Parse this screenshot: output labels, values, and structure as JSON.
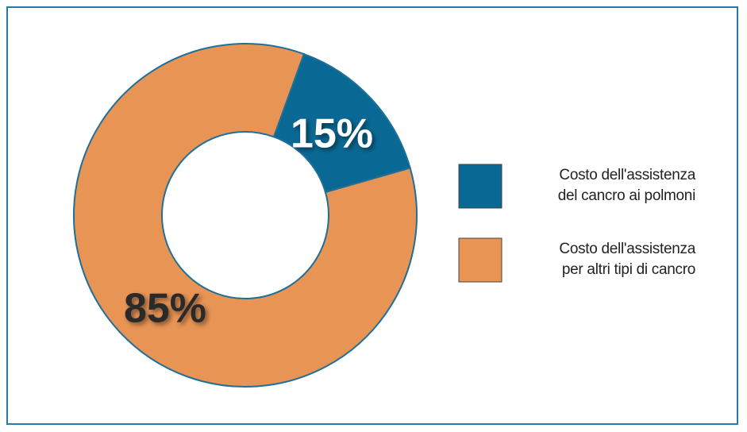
{
  "chart_data": {
    "type": "donut",
    "categories": [
      "Costo dell'assistenza\ndel cancro ai polmoni",
      "Costo dell'assistenza\nper altri tipi di cancro"
    ],
    "values": [
      15,
      85
    ],
    "value_labels": [
      "15%",
      "85%"
    ],
    "colors": [
      "#0a6894",
      "#e89455"
    ],
    "label_colors": [
      "#ffffff",
      "#2b2b2b"
    ]
  }
}
